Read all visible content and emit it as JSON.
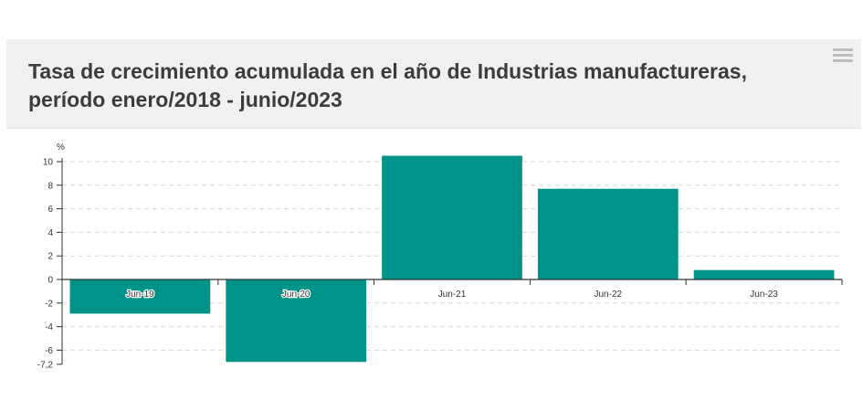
{
  "header": {
    "title_line1": "Tasa de crecimiento acumulada en el año de Industrias manufactureras,",
    "title_line2": "período enero/2018 - junio/2023",
    "menu_icon": "hamburger-menu-icon"
  },
  "chart_data": {
    "type": "bar",
    "title": "Tasa de crecimiento acumulada en el año de Industrias manufactureras, período enero/2018 - junio/2023",
    "ylabel": "%",
    "categories": [
      "Jun-19",
      "Jun-20",
      "Jun-21",
      "Jun-22",
      "Jun-23"
    ],
    "values": [
      -2.9,
      -7.0,
      10.5,
      7.7,
      0.8
    ],
    "ylim": [
      -7.2,
      10.5
    ],
    "yticks": [
      "10",
      "8",
      "6",
      "4",
      "2",
      "0",
      "-2",
      "-4",
      "-6",
      "-7,2"
    ],
    "ytick_values": [
      10,
      8,
      6,
      4,
      2,
      0,
      -2,
      -4,
      -6,
      -7.2
    ],
    "grid": true,
    "bar_color": "#00938a",
    "axis_color": "#333333"
  }
}
